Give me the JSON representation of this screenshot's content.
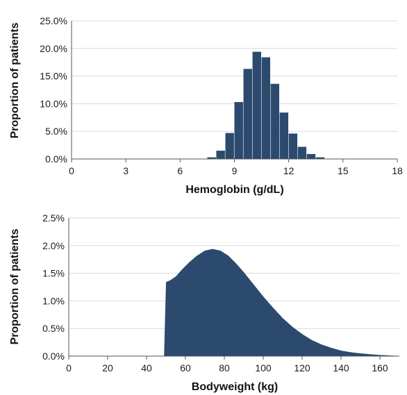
{
  "chart_data": [
    {
      "type": "bar",
      "xlabel": "Hemoglobin (g/dL)",
      "ylabel": "Proportion of patients",
      "xlim": [
        0,
        18
      ],
      "ylim": [
        0,
        25
      ],
      "x_ticks": [
        "0",
        "3",
        "6",
        "9",
        "12",
        "15",
        "18"
      ],
      "x_tick_values": [
        0,
        3,
        6,
        9,
        12,
        15,
        18
      ],
      "y_ticks": [
        "0.0%",
        "5.0%",
        "10.0%",
        "15.0%",
        "20.0%",
        "25.0%"
      ],
      "y_tick_values": [
        0,
        5,
        10,
        15,
        20,
        25
      ],
      "bin_width": 0.5,
      "bins": [
        {
          "x0": 7.5,
          "value": 0.3
        },
        {
          "x0": 8.0,
          "value": 1.5
        },
        {
          "x0": 8.5,
          "value": 4.7
        },
        {
          "x0": 9.0,
          "value": 10.3
        },
        {
          "x0": 9.5,
          "value": 16.3
        },
        {
          "x0": 10.0,
          "value": 19.4
        },
        {
          "x0": 10.5,
          "value": 18.4
        },
        {
          "x0": 11.0,
          "value": 13.6
        },
        {
          "x0": 11.5,
          "value": 8.4
        },
        {
          "x0": 12.0,
          "value": 4.6
        },
        {
          "x0": 12.5,
          "value": 2.2
        },
        {
          "x0": 13.0,
          "value": 0.9
        },
        {
          "x0": 13.5,
          "value": 0.3
        }
      ],
      "grid": true,
      "color": "#2c4a6e"
    },
    {
      "type": "area",
      "xlabel": "Bodyweight (kg)",
      "ylabel": "Proportion of patients",
      "xlim": [
        0,
        170
      ],
      "ylim": [
        0,
        2.5
      ],
      "x_ticks": [
        "0",
        "20",
        "40",
        "60",
        "80",
        "100",
        "120",
        "140",
        "160"
      ],
      "x_tick_values": [
        0,
        20,
        40,
        60,
        80,
        100,
        120,
        140,
        160
      ],
      "y_ticks": [
        "0.0%",
        "0.5%",
        "1.0%",
        "1.5%",
        "2.0%",
        "2.5%"
      ],
      "y_tick_values": [
        0,
        0.5,
        1.0,
        1.5,
        2.0,
        2.5
      ],
      "x": [
        49,
        50,
        52,
        55,
        58,
        62,
        66,
        70,
        74,
        78,
        82,
        86,
        90,
        95,
        100,
        105,
        110,
        115,
        120,
        125,
        130,
        135,
        140,
        145,
        150,
        155,
        160,
        165,
        170
      ],
      "y": [
        0,
        1.34,
        1.37,
        1.44,
        1.56,
        1.7,
        1.82,
        1.91,
        1.94,
        1.91,
        1.82,
        1.68,
        1.52,
        1.3,
        1.08,
        0.88,
        0.69,
        0.53,
        0.4,
        0.29,
        0.21,
        0.15,
        0.1,
        0.07,
        0.05,
        0.035,
        0.02,
        0.012,
        0.005
      ],
      "grid": true,
      "color": "#2c4a6e"
    }
  ]
}
